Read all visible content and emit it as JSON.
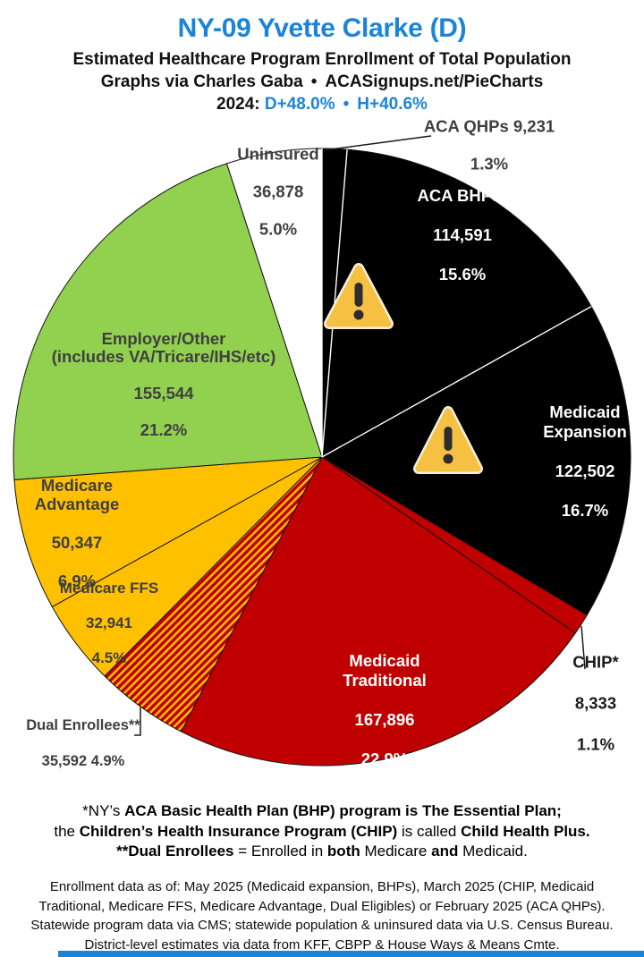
{
  "header": {
    "title": "NY-09 Yvette Clarke (D)",
    "subtitle1": "Estimated Healthcare Program Enrollment of Total Population",
    "credit_left": "Graphs via Charles Gaba",
    "credit_bullet": "•",
    "credit_right": "ACASignups.net/PieCharts",
    "year_label": "2024:",
    "d_value": "D+48.0%",
    "year_bullet": "•",
    "h_value": "H+40.6%",
    "accent_blue": "#1B84D6"
  },
  "chart_data": {
    "type": "pie",
    "title": "Estimated Healthcare Program Enrollment of Total Population",
    "start_angle": "12-oclock, clockwise",
    "slices": [
      {
        "id": "aca-qhps",
        "label": "ACA QHPs",
        "value": "9,231",
        "pct": 1.3,
        "pct_text": "1.3%",
        "color": "#000000",
        "label_position": "outside"
      },
      {
        "id": "aca-bhps",
        "label": "ACA BHPs*",
        "value": "114,591",
        "pct": 15.6,
        "pct_text": "15.6%",
        "color": "#000000",
        "label_position": "inside"
      },
      {
        "id": "medicaid-expansion",
        "label": "Medicaid\nExpansion",
        "value": "122,502",
        "pct": 16.7,
        "pct_text": "16.7%",
        "color": "#000000",
        "label_position": "inside"
      },
      {
        "id": "chip",
        "label": "CHIP*",
        "value": "8,333",
        "pct": 1.1,
        "pct_text": "1.1%",
        "color": "#C00000",
        "label_position": "outside"
      },
      {
        "id": "medicaid-traditional",
        "label": "Medicaid\nTraditional",
        "value": "167,896",
        "pct": 22.9,
        "pct_text": "22.9%",
        "color": "#C00000",
        "label_position": "inside"
      },
      {
        "id": "dual-enrollees",
        "label": "Dual Enrollees**",
        "value": "35,592",
        "pct": 4.9,
        "pct_text": "4.9%",
        "color": "stripes-red-yellow",
        "label_position": "outside"
      },
      {
        "id": "medicare-ffs",
        "label": "Medicare FFS",
        "value": "32,941",
        "pct": 4.5,
        "pct_text": "4.5%",
        "color": "#FFC000",
        "label_position": "inside"
      },
      {
        "id": "medicare-advantage",
        "label": "Medicare\nAdvantage",
        "value": "50,347",
        "pct": 6.9,
        "pct_text": "6.9%",
        "color": "#FFC000",
        "label_position": "inside"
      },
      {
        "id": "employer-other",
        "label": "Employer/Other\n(includes VA/Tricare/IHS/etc)",
        "value": "155,544",
        "pct": 21.2,
        "pct_text": "21.2%",
        "color": "#92D050",
        "label_position": "inside"
      },
      {
        "id": "uninsured",
        "label": "Uninsured",
        "value": "36,878",
        "pct": 5.0,
        "pct_text": "5.0%",
        "color": "#FFFFFF",
        "label_position": "inside"
      }
    ],
    "stripe_colors": {
      "base": "#C00000",
      "stripe": "#FFC000"
    },
    "warning_icon": {
      "fill": "#F6C142",
      "border": "#F3EEDC",
      "glyph": "#2D2D2D"
    }
  },
  "footnote1": {
    "line1": {
      "s1": "*NY’s ",
      "s2": "ACA Basic Health Plan (BHP) program is The Essential Plan;"
    },
    "line2": {
      "s1": "the ",
      "s2": "Children’s Health Insurance Program (CHIP)",
      "s3": " is called ",
      "s4": "Child Health Plus."
    },
    "line3": {
      "s1": "**Dual Enrollees",
      "s2": " = Enrolled in ",
      "s3": "both",
      "s4": " Medicare ",
      "s5": "and",
      "s6": " Medicaid."
    }
  },
  "source": {
    "line1": "Enrollment data as of: May 2025 (Medicaid expansion, BHPs), March 2025 (CHIP, Medicaid",
    "line2": "Traditional, Medicare FFS, Medicare Advantage, Dual Eligibles) or February 2025 (ACA QHPs).",
    "line3": "Statewide program data via CMS; statewide population & uninsured data via U.S. Census Bureau.",
    "line4": "District-level estimates via data from KFF, CBPP & House Ways & Means Cmte."
  }
}
